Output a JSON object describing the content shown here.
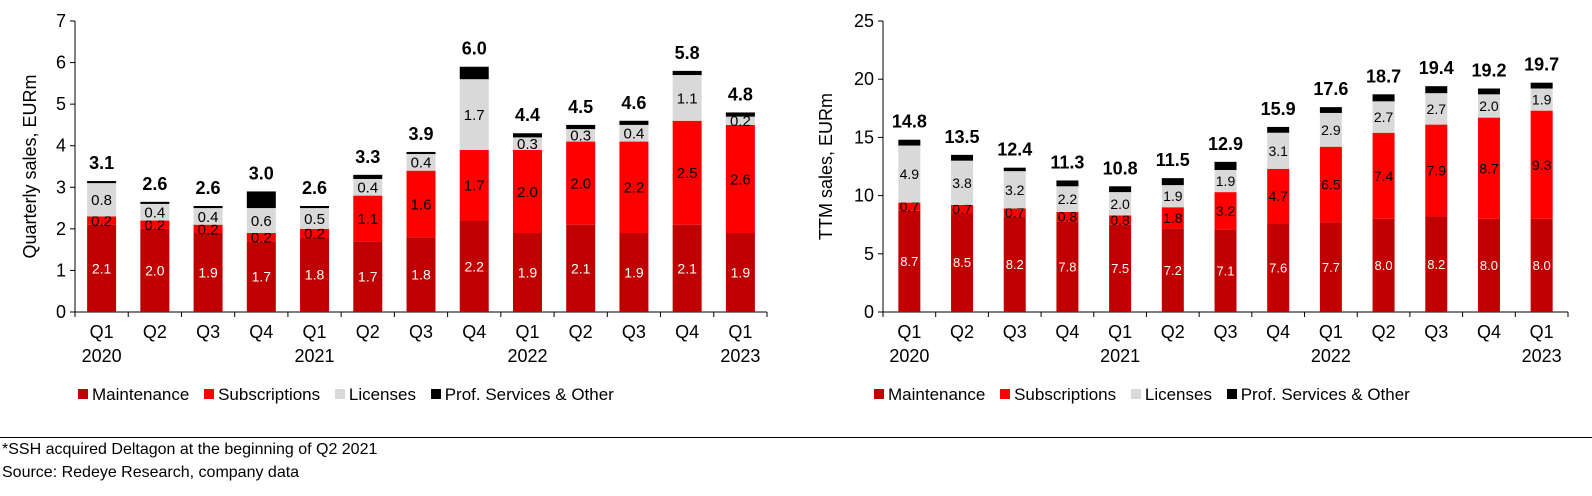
{
  "colors": {
    "maintenance": "#C00000",
    "subscriptions": "#FF0000",
    "licenses": "#D9D9D9",
    "prof_services": "#000000"
  },
  "chart_data": [
    {
      "type": "bar",
      "stacked": true,
      "title": "",
      "ylabel": "Quarterly sales, EURm",
      "xlabel": "",
      "ylim": [
        0,
        7
      ],
      "yticks": [
        0,
        1,
        2,
        3,
        4,
        5,
        6,
        7
      ],
      "categories": [
        "Q1",
        "Q2",
        "Q3",
        "Q4",
        "Q1",
        "Q2",
        "Q3",
        "Q4",
        "Q1",
        "Q2",
        "Q3",
        "Q4",
        "Q1"
      ],
      "category_years": [
        "2020",
        "",
        "",
        "",
        "2021",
        "",
        "",
        "",
        "2022",
        "",
        "",
        "",
        "2023"
      ],
      "series": [
        {
          "name": "Maintenance",
          "color": "#C00000",
          "values": [
            2.1,
            2.0,
            1.9,
            1.7,
            1.8,
            1.7,
            1.8,
            2.2,
            1.9,
            2.1,
            1.9,
            2.1,
            1.9
          ],
          "labels": [
            "2.1",
            "2.0",
            "1.9",
            "1.7",
            "1.8",
            "1.7",
            "1.8",
            "2.2",
            "1.9",
            "2.1",
            "1.9",
            "2.1",
            "1.9"
          ]
        },
        {
          "name": "Subscriptions",
          "color": "#FF0000",
          "values": [
            0.2,
            0.2,
            0.2,
            0.2,
            0.2,
            1.1,
            1.6,
            1.7,
            2.0,
            2.0,
            2.2,
            2.5,
            2.6
          ],
          "labels": [
            "0.2",
            "0.2",
            "0.2",
            "0.2",
            "0.2",
            "1.1",
            "1.6",
            "1.7",
            "2.0",
            "2.0",
            "2.2",
            "2.5",
            "2.6"
          ]
        },
        {
          "name": "Licenses",
          "color": "#D9D9D9",
          "values": [
            0.8,
            0.4,
            0.4,
            0.6,
            0.5,
            0.4,
            0.4,
            1.7,
            0.3,
            0.3,
            0.4,
            1.1,
            0.2
          ],
          "labels": [
            "0.8",
            "0.4",
            "0.4",
            "0.6",
            "0.5",
            "0.4",
            "0.4",
            "1.7",
            "0.3",
            "0.3",
            "0.4",
            "1.1",
            "0.2"
          ]
        },
        {
          "name": "Prof. Services & Other",
          "color": "#000000",
          "values": [
            0.05,
            0.05,
            0.05,
            0.4,
            0.05,
            0.1,
            0.05,
            0.3,
            0.1,
            0.1,
            0.1,
            0.1,
            0.1
          ],
          "labels": []
        }
      ],
      "totals": [
        "3.1",
        "2.6",
        "2.6",
        "3.0",
        "2.6",
        "3.3",
        "3.9",
        "6.0",
        "4.4",
        "4.5",
        "4.6",
        "5.8",
        "4.8"
      ],
      "legend_position": "bottom"
    },
    {
      "type": "bar",
      "stacked": true,
      "title": "",
      "ylabel": "TTM sales, EURm",
      "xlabel": "",
      "ylim": [
        0,
        25
      ],
      "yticks": [
        0,
        5,
        10,
        15,
        20,
        25
      ],
      "categories": [
        "Q1",
        "Q2",
        "Q3",
        "Q4",
        "Q1",
        "Q2",
        "Q3",
        "Q4",
        "Q1",
        "Q2",
        "Q3",
        "Q4",
        "Q1"
      ],
      "category_years": [
        "2020",
        "",
        "",
        "",
        "2021",
        "",
        "",
        "",
        "2022",
        "",
        "",
        "",
        "2023"
      ],
      "series": [
        {
          "name": "Maintenance",
          "color": "#C00000",
          "values": [
            8.7,
            8.5,
            8.2,
            7.8,
            7.5,
            7.2,
            7.1,
            7.6,
            7.7,
            8.0,
            8.2,
            8.0,
            8.0
          ],
          "labels": [
            "8.7",
            "8.5",
            "8.2",
            "7.8",
            "7.5",
            "7.2",
            "7.1",
            "7.6",
            "7.7",
            "8.0",
            "8.2",
            "8.0",
            "8.0"
          ]
        },
        {
          "name": "Subscriptions",
          "color": "#FF0000",
          "values": [
            0.7,
            0.7,
            0.7,
            0.8,
            0.8,
            1.8,
            3.2,
            4.7,
            6.5,
            7.4,
            7.9,
            8.7,
            9.3
          ],
          "labels": [
            "0.7",
            "0.7",
            "0.7",
            "0.8",
            "0.8",
            "1.8",
            "3.2",
            "4.7",
            "6.5",
            "7.4",
            "7.9",
            "8.7",
            "9.3"
          ]
        },
        {
          "name": "Licenses",
          "color": "#D9D9D9",
          "values": [
            4.9,
            3.8,
            3.2,
            2.2,
            2.0,
            1.9,
            1.9,
            3.1,
            2.9,
            2.7,
            2.7,
            2.0,
            1.9
          ],
          "labels": [
            "4.9",
            "3.8",
            "3.2",
            "2.2",
            "2.0",
            "1.9",
            "1.9",
            "3.1",
            "2.9",
            "2.7",
            "2.7",
            "2.0",
            "1.9"
          ]
        },
        {
          "name": "Prof. Services & Other",
          "color": "#000000",
          "values": [
            0.5,
            0.5,
            0.3,
            0.5,
            0.5,
            0.6,
            0.7,
            0.5,
            0.5,
            0.6,
            0.6,
            0.5,
            0.5
          ],
          "labels": []
        }
      ],
      "totals": [
        "14.8",
        "13.5",
        "12.4",
        "11.3",
        "10.8",
        "11.5",
        "12.9",
        "15.9",
        "17.6",
        "18.7",
        "19.4",
        "19.2",
        "19.7"
      ],
      "legend_position": "bottom"
    }
  ],
  "legend": {
    "maintenance": "Maintenance",
    "subscriptions": "Subscriptions",
    "licenses": "Licenses",
    "prof_services": "Prof. Services & Other"
  },
  "footnotes": {
    "acquisition": "*SSH acquired Deltagon at the beginning of Q2 2021",
    "source": "Source: Redeye Research, company data"
  }
}
